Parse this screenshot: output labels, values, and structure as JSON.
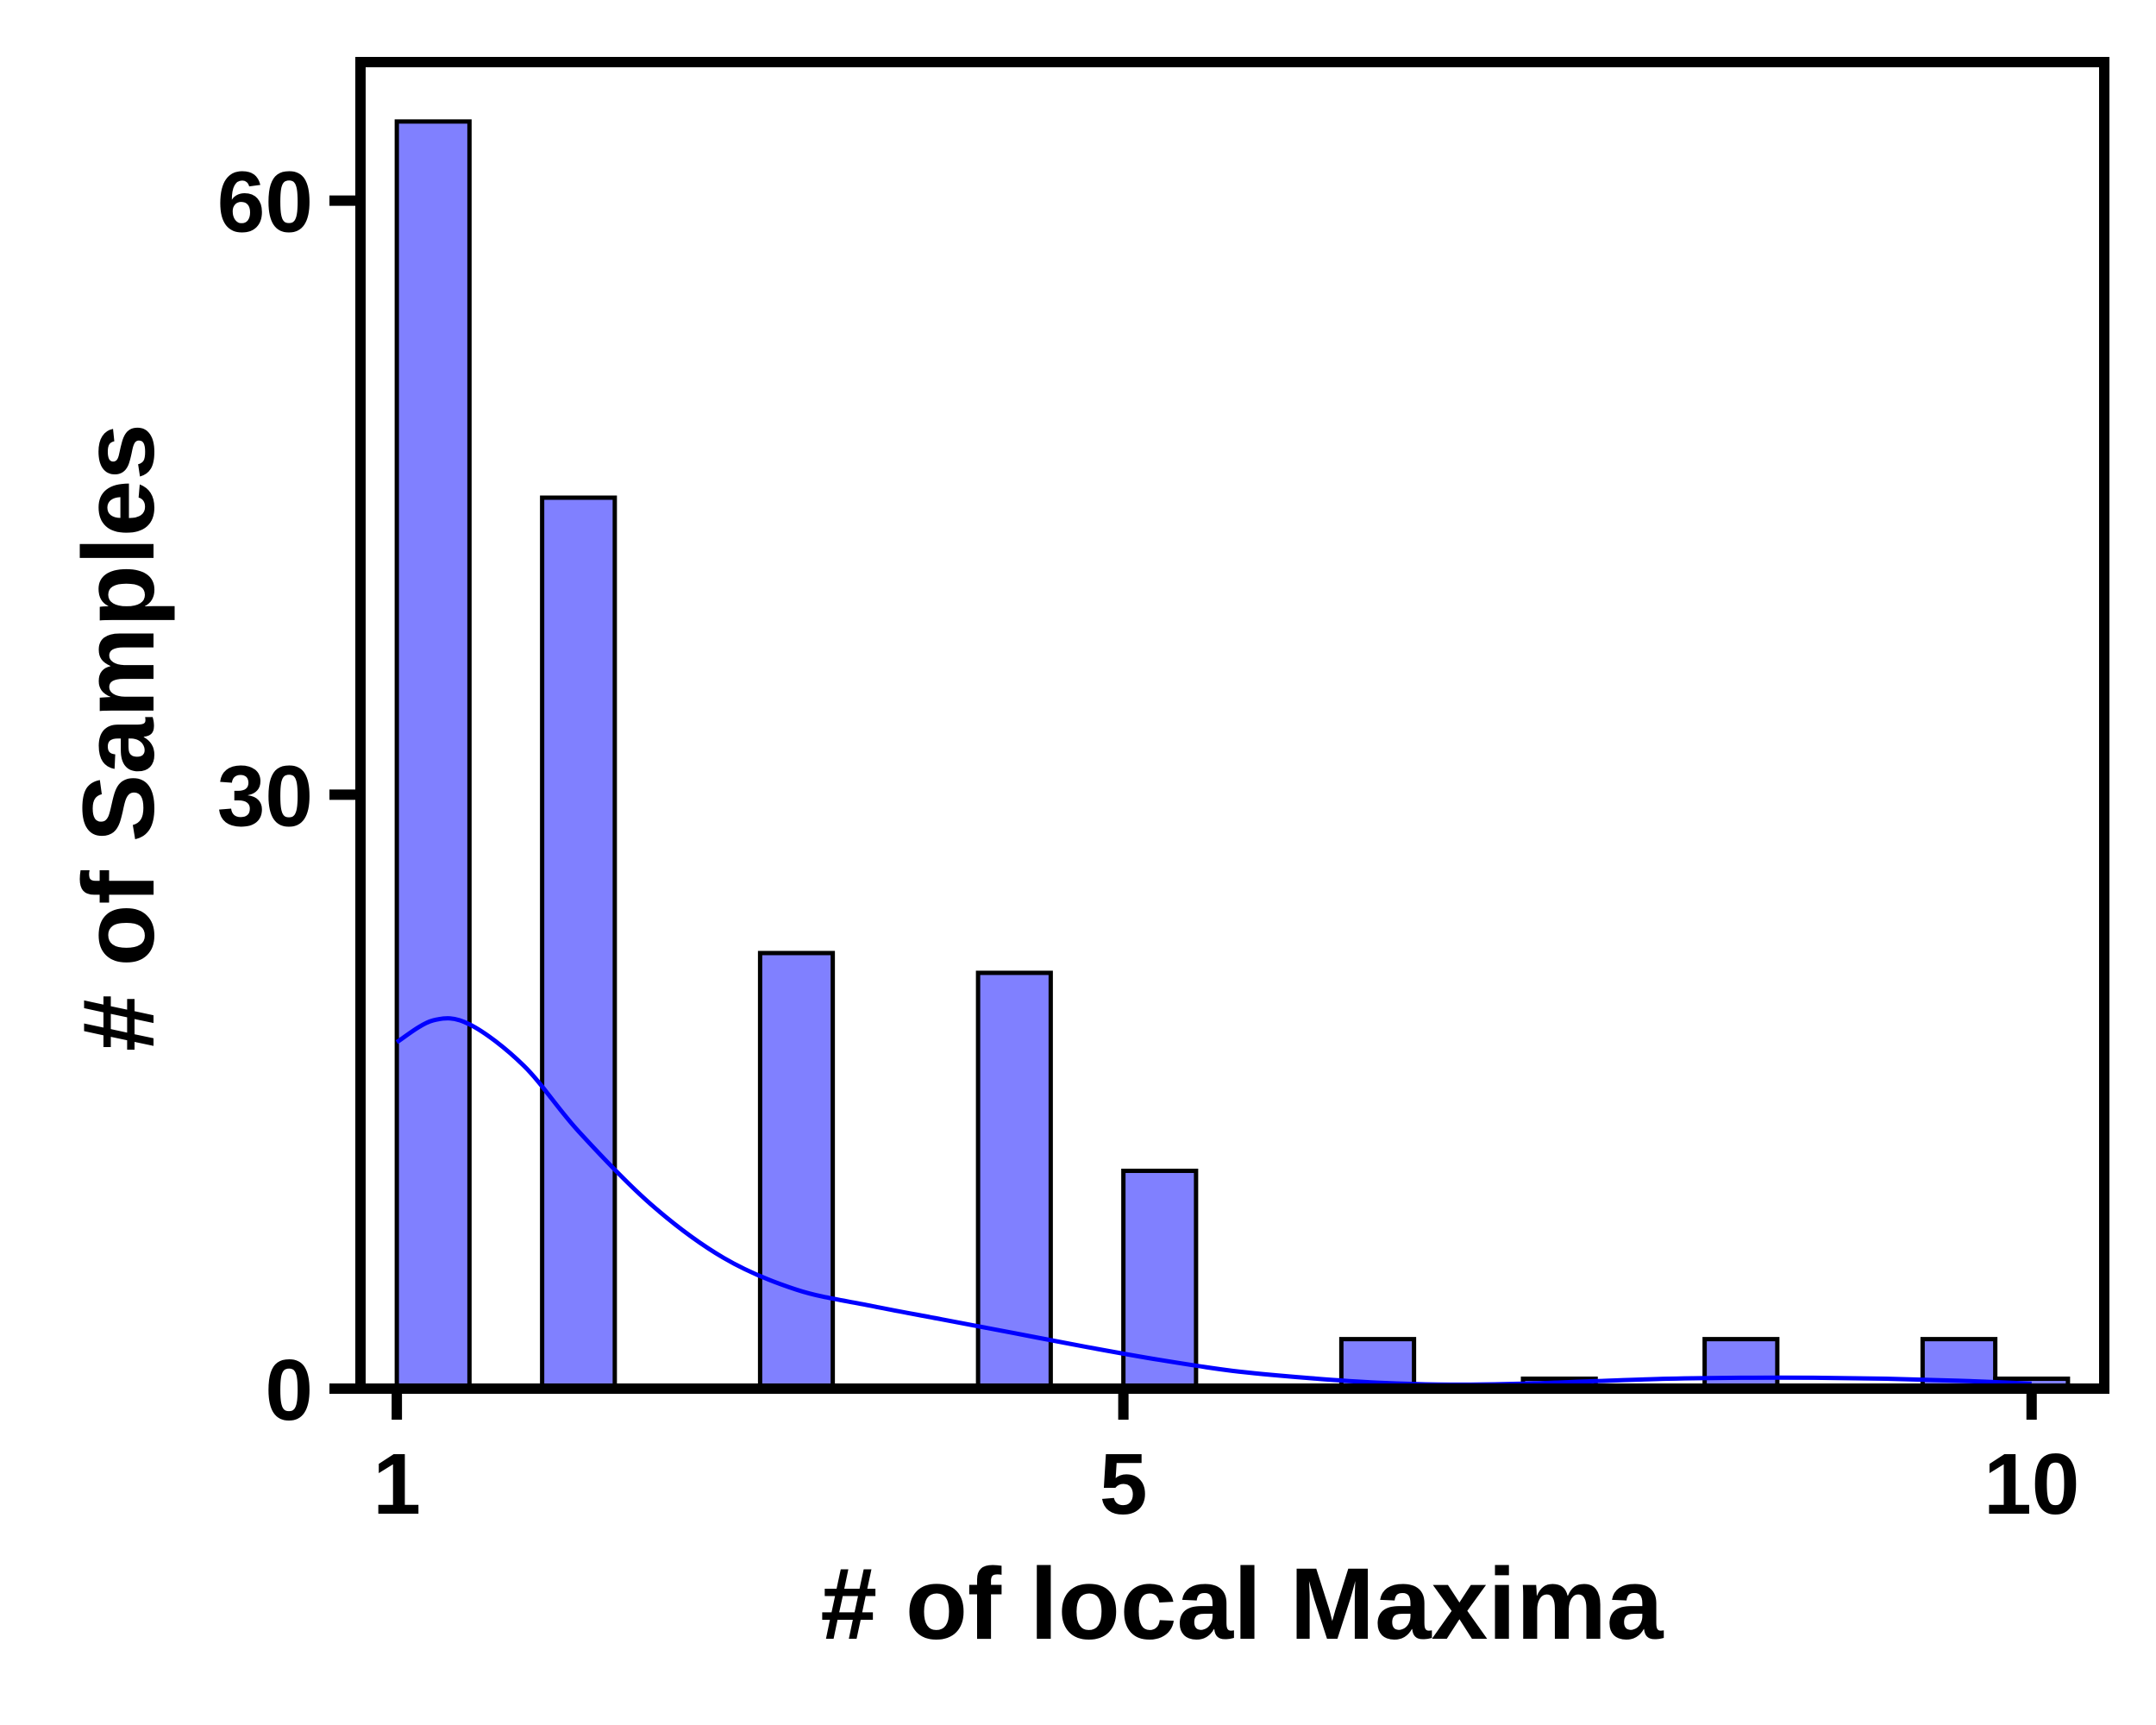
{
  "chart_data": {
    "type": "bar",
    "title": "",
    "xlabel": "# of local Maxima",
    "ylabel": "# of Samples",
    "xlim": [
      0.8,
      10.4
    ],
    "ylim": [
      0,
      67
    ],
    "x_ticks": [
      1,
      5,
      10
    ],
    "y_ticks": [
      0,
      30,
      60
    ],
    "bar_width": 0.4,
    "bars": [
      {
        "x": 1.2,
        "value": 64
      },
      {
        "x": 2.0,
        "value": 45
      },
      {
        "x": 3.2,
        "value": 22
      },
      {
        "x": 4.4,
        "value": 21
      },
      {
        "x": 5.2,
        "value": 11
      },
      {
        "x": 6.4,
        "value": 2.5
      },
      {
        "x": 7.4,
        "value": 0.5
      },
      {
        "x": 8.4,
        "value": 2.5
      },
      {
        "x": 9.6,
        "value": 2.5
      },
      {
        "x": 10.0,
        "value": 0.5
      }
    ],
    "kde_curve": {
      "x": [
        1.0,
        1.2,
        1.4,
        1.7,
        2.0,
        2.4,
        2.8,
        3.2,
        3.6,
        4.0,
        4.4,
        4.8,
        5.2,
        5.6,
        6.0,
        6.4,
        6.8,
        7.2,
        7.6,
        8.0,
        8.4,
        8.8,
        9.2,
        9.6,
        10.0
      ],
      "y": [
        17.5,
        18.6,
        18.4,
        16.3,
        13.0,
        9.3,
        6.6,
        5.0,
        4.2,
        3.5,
        2.8,
        2.1,
        1.45,
        0.9,
        0.55,
        0.3,
        0.2,
        0.25,
        0.38,
        0.5,
        0.55,
        0.55,
        0.5,
        0.4,
        0.25
      ]
    },
    "colors": {
      "bar_fill": "#8080ff",
      "bar_edge": "#000000",
      "kde_line": "#0000ff",
      "frame": "#000000"
    }
  }
}
